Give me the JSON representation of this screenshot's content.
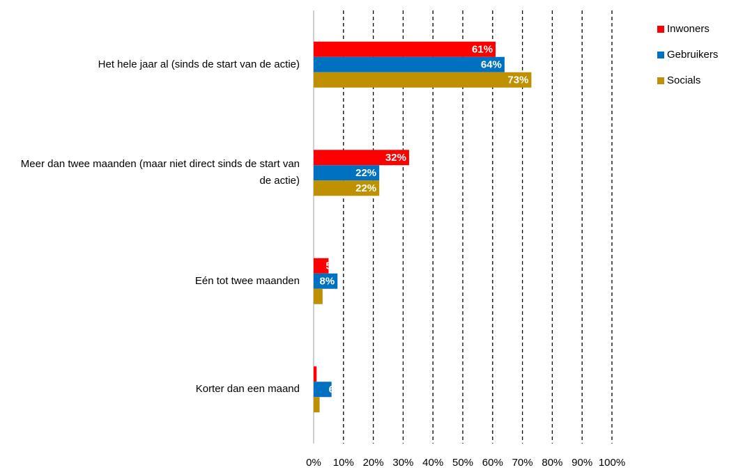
{
  "chart_data": {
    "type": "bar",
    "orientation": "horizontal",
    "categories": [
      "Het hele jaar al (sinds de start van de actie)",
      "Meer dan twee maanden (maar niet direct sinds de start van de actie)",
      "Eén tot twee maanden",
      "Korter dan een maand"
    ],
    "series": [
      {
        "name": "Inwoners",
        "color": "#ff0000",
        "values": [
          61,
          32,
          5,
          1
        ],
        "value_labels": [
          "61%",
          "32%",
          "5%",
          null
        ]
      },
      {
        "name": "Gebruikers",
        "color": "#0070c0",
        "values": [
          64,
          22,
          8,
          6
        ],
        "value_labels": [
          "64%",
          "22%",
          "8%",
          "6%"
        ]
      },
      {
        "name": "Socials",
        "color": "#bf9000",
        "values": [
          73,
          22,
          3,
          2
        ],
        "value_labels": [
          "73%",
          "22%",
          null,
          null
        ]
      }
    ],
    "xlim": [
      0,
      100
    ],
    "xticks": [
      {
        "value": 0,
        "label": "0%"
      },
      {
        "value": 10,
        "label": "10%"
      },
      {
        "value": 20,
        "label": "20%"
      },
      {
        "value": 30,
        "label": "30%"
      },
      {
        "value": 40,
        "label": "40%"
      },
      {
        "value": 50,
        "label": "50%"
      },
      {
        "value": 60,
        "label": "60%"
      },
      {
        "value": 70,
        "label": "70%"
      },
      {
        "value": 80,
        "label": "80%"
      },
      {
        "value": 90,
        "label": "90%"
      },
      {
        "value": 100,
        "label": "100%"
      }
    ],
    "grid": true,
    "legend": "top-right"
  }
}
